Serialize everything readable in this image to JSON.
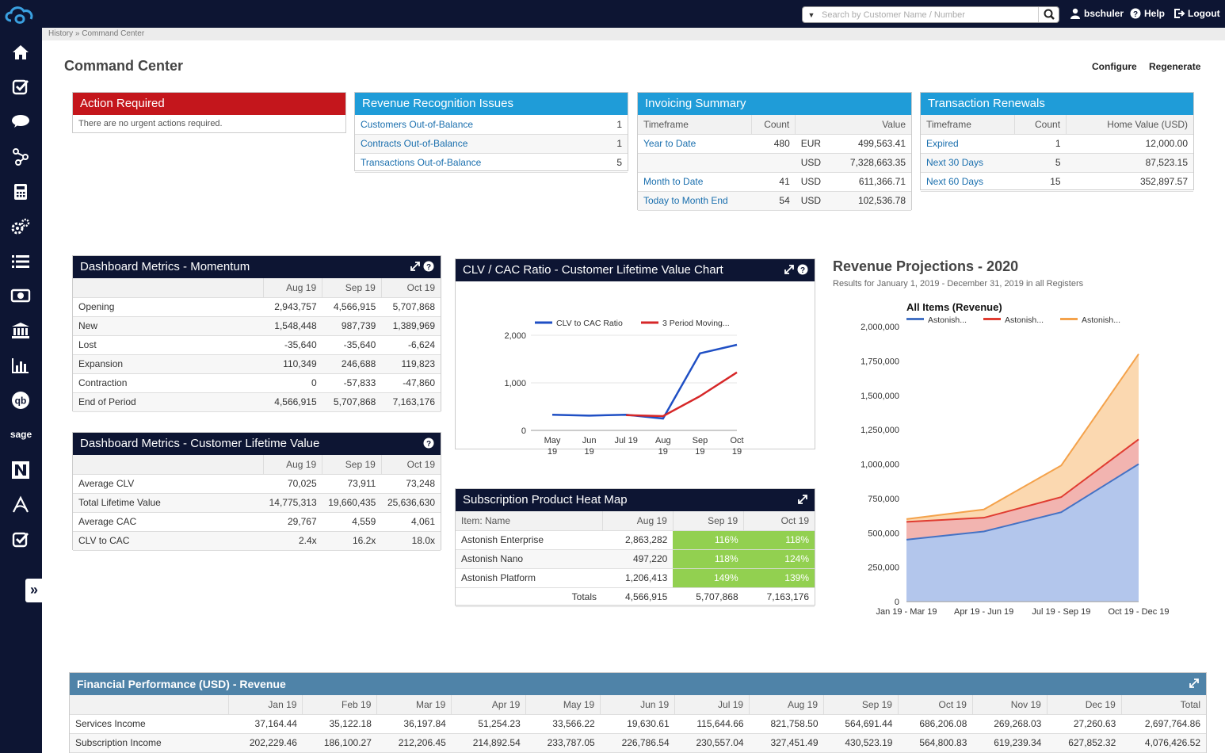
{
  "header": {
    "search_placeholder": "Search by Customer Name / Number",
    "user": "bschuler",
    "help": "Help",
    "logout": "Logout"
  },
  "sidebar": {
    "items": [
      "home-icon",
      "check-icon",
      "chat-icon",
      "network-icon",
      "calculator-icon",
      "gears-icon",
      "list-icon",
      "money-icon",
      "bank-icon",
      "bar-chart-icon",
      "quickbooks-icon",
      "sage-logo",
      "netsuite-icon",
      "avalara-icon",
      "check-icon"
    ],
    "sage_label": "sage"
  },
  "breadcrumb": "History » Command Center",
  "page": {
    "title": "Command Center",
    "configure": "Configure",
    "regenerate": "Regenerate"
  },
  "action_required": {
    "title": "Action Required",
    "message": "There are no urgent actions required."
  },
  "revenue_issues": {
    "title": "Revenue Recognition Issues",
    "rows": [
      {
        "label": "Customers Out-of-Balance",
        "count": "1"
      },
      {
        "label": "Contracts Out-of-Balance",
        "count": "1"
      },
      {
        "label": "Transactions Out-of-Balance",
        "count": "5"
      }
    ]
  },
  "invoicing": {
    "title": "Invoicing Summary",
    "headers": [
      "Timeframe",
      "Count",
      "Value"
    ],
    "rows": [
      {
        "timeframe": "Year to Date",
        "count": "480",
        "currency": "EUR",
        "value": "499,563.41"
      },
      {
        "timeframe": "",
        "count": "",
        "currency": "USD",
        "value": "7,328,663.35"
      },
      {
        "timeframe": "Month to Date",
        "count": "41",
        "currency": "USD",
        "value": "611,366.71"
      },
      {
        "timeframe": "Today to Month End",
        "count": "54",
        "currency": "USD",
        "value": "102,536.78"
      }
    ]
  },
  "renewals": {
    "title": "Transaction Renewals",
    "headers": [
      "Timeframe",
      "Count",
      "Home Value (USD)"
    ],
    "rows": [
      {
        "timeframe": "Expired",
        "count": "1",
        "value": "12,000.00"
      },
      {
        "timeframe": "Next 30 Days",
        "count": "5",
        "value": "87,523.15"
      },
      {
        "timeframe": "Next 60 Days",
        "count": "15",
        "value": "352,897.57"
      }
    ]
  },
  "momentum": {
    "title": "Dashboard Metrics - Momentum",
    "headers": [
      "",
      "Aug 19",
      "Sep 19",
      "Oct 19"
    ],
    "rows": [
      [
        "Opening",
        "2,943,757",
        "4,566,915",
        "5,707,868"
      ],
      [
        "New",
        "1,548,448",
        "987,739",
        "1,389,969"
      ],
      [
        "Lost",
        "-35,640",
        "-35,640",
        "-6,624"
      ],
      [
        "Expansion",
        "110,349",
        "246,688",
        "119,823"
      ],
      [
        "Contraction",
        "0",
        "-57,833",
        "-47,860"
      ],
      [
        "End of Period",
        "4,566,915",
        "5,707,868",
        "7,163,176"
      ]
    ]
  },
  "clv": {
    "title": "Dashboard Metrics - Customer Lifetime Value",
    "headers": [
      "",
      "Aug 19",
      "Sep 19",
      "Oct 19"
    ],
    "rows": [
      [
        "Average CLV",
        "70,025",
        "73,911",
        "73,248"
      ],
      [
        "Total Lifetime Value",
        "14,775,313",
        "19,660,435",
        "25,636,630"
      ],
      [
        "Average CAC",
        "29,767",
        "4,559",
        "4,061"
      ],
      [
        "CLV to CAC",
        "2.4x",
        "16.2x",
        "18.0x"
      ]
    ]
  },
  "heatmap": {
    "title": "Subscription Product Heat Map",
    "headers": [
      "Item: Name",
      "Aug 19",
      "Sep 19",
      "Oct 19"
    ],
    "rows": [
      [
        "Astonish Enterprise",
        "2,863,282",
        "116%",
        "118%"
      ],
      [
        "Astonish Nano",
        "497,220",
        "118%",
        "124%"
      ],
      [
        "Astonish Platform",
        "1,206,413",
        "149%",
        "139%"
      ]
    ],
    "totals": [
      "Totals",
      "4,566,915",
      "5,707,868",
      "7,163,176"
    ],
    "highlight_color": "#92d050"
  },
  "financial": {
    "title": "Financial Performance (USD) - Revenue",
    "headers": [
      "",
      "Jan 19",
      "Feb 19",
      "Mar 19",
      "Apr 19",
      "May 19",
      "Jun 19",
      "Jul 19",
      "Aug 19",
      "Sep 19",
      "Oct 19",
      "Nov 19",
      "Dec 19",
      "Total"
    ],
    "rows": [
      [
        "Services Income",
        "37,164.44",
        "35,122.18",
        "36,197.84",
        "51,254.23",
        "33,566.22",
        "19,630.61",
        "115,644.66",
        "821,758.50",
        "564,691.44",
        "686,206.08",
        "269,268.03",
        "27,260.63",
        "2,697,764.86"
      ],
      [
        "Subscription Income",
        "202,229.46",
        "186,100.27",
        "212,206.45",
        "214,892.54",
        "233,787.05",
        "226,786.54",
        "230,557.04",
        "327,451.49",
        "430,523.19",
        "564,800.83",
        "619,239.34",
        "627,852.32",
        "4,076,426.52"
      ]
    ]
  },
  "revenue_projections": {
    "title": "Revenue Projections - 2020",
    "subtitle": "Results for January 1, 2019 - December 31, 2019 in all Registers"
  },
  "chart_data": [
    {
      "type": "line",
      "title": "CLV / CAC Ratio - Customer Lifetime Value Chart",
      "categories": [
        "May 19",
        "Jun 19",
        "Jul 19",
        "Aug 19",
        "Sep 19",
        "Oct 19"
      ],
      "series": [
        {
          "name": "CLV to CAC Ratio",
          "color": "#1f4fc4",
          "values": [
            330,
            310,
            330,
            250,
            1620,
            1800
          ]
        },
        {
          "name": "3 Period Moving...",
          "color": "#d62728",
          "values": [
            null,
            null,
            320,
            300,
            720,
            1220
          ]
        }
      ],
      "yticks": [
        "0",
        "1,000",
        "2,000"
      ],
      "ylim": [
        0,
        2000
      ],
      "legend": "top"
    },
    {
      "type": "area",
      "title": "All Items (Revenue)",
      "categories": [
        "Jan 19 - Mar 19",
        "Apr 19 - Jun 19",
        "Jul 19 - Sep 19",
        "Oct 19 - Dec 19"
      ],
      "series": [
        {
          "name": "Astonish...",
          "color": "#4472c4",
          "fill": "#b3c6ec",
          "values": [
            450000,
            510000,
            650000,
            1000000
          ]
        },
        {
          "name": "Astonish...",
          "color": "#e03c31",
          "fill": "#f2b4b0",
          "values": [
            580000,
            610000,
            760000,
            1180000
          ]
        },
        {
          "name": "Astonish...",
          "color": "#f4a24b",
          "fill": "#fbd8b0",
          "values": [
            600000,
            670000,
            990000,
            1800000
          ]
        }
      ],
      "yticks": [
        "0",
        "250,000",
        "500,000",
        "750,000",
        "1,000,000",
        "1,250,000",
        "1,500,000",
        "1,750,000",
        "2,000,000"
      ],
      "ylim": [
        0,
        2000000
      ],
      "legend": "top"
    }
  ]
}
